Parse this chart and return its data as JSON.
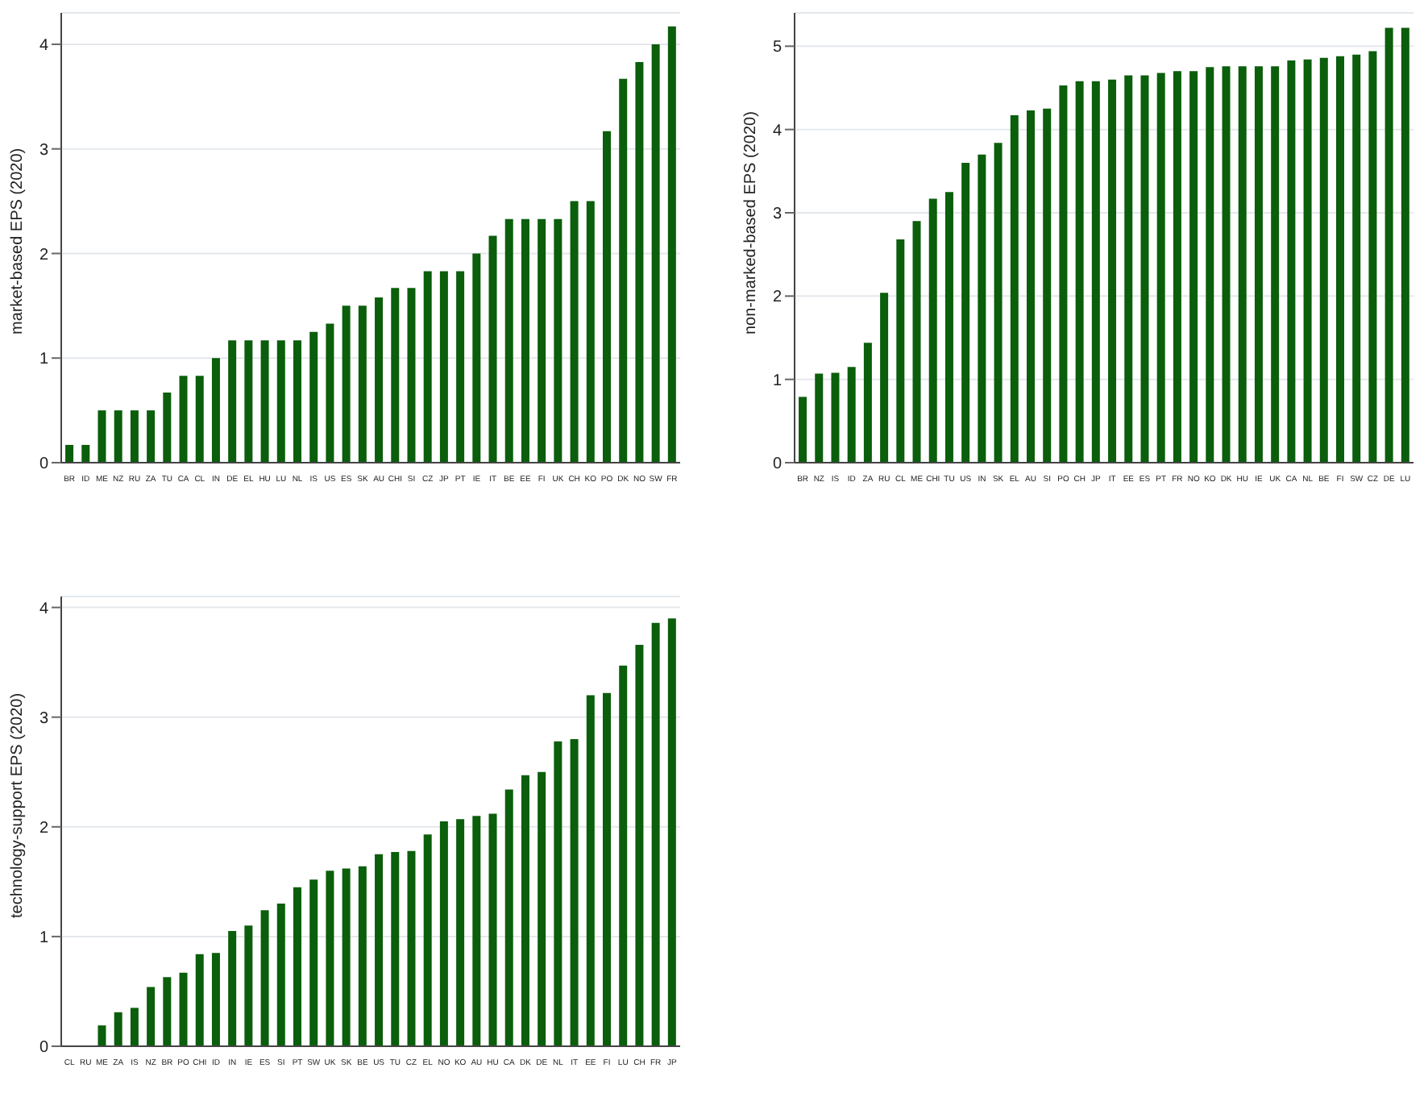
{
  "chart_data": [
    {
      "type": "bar",
      "ylabel": "market-based EPS (2020)",
      "categories": [
        "BR",
        "ID",
        "ME",
        "NZ",
        "RU",
        "ZA",
        "TU",
        "CA",
        "CL",
        "IN",
        "DE",
        "EL",
        "HU",
        "LU",
        "NL",
        "IS",
        "US",
        "ES",
        "SK",
        "AU",
        "CHI",
        "SI",
        "CZ",
        "JP",
        "PT",
        "IE",
        "IT",
        "BE",
        "EE",
        "FI",
        "UK",
        "CH",
        "KO",
        "PO",
        "DK",
        "NO",
        "SW",
        "FR"
      ],
      "values": [
        0.17,
        0.17,
        0.5,
        0.5,
        0.5,
        0.5,
        0.67,
        0.83,
        0.83,
        1.0,
        1.17,
        1.17,
        1.17,
        1.17,
        1.17,
        1.25,
        1.33,
        1.5,
        1.5,
        1.58,
        1.67,
        1.67,
        1.83,
        1.83,
        1.83,
        2.0,
        2.17,
        2.33,
        2.33,
        2.33,
        2.33,
        2.5,
        2.5,
        3.17,
        3.67,
        3.83,
        4.0,
        4.17
      ],
      "color": "#0b5e0b",
      "ylim": [
        0,
        4.3
      ],
      "yticks": [
        0,
        1,
        2,
        3,
        4
      ],
      "grid": "y",
      "legend": false
    },
    {
      "type": "bar",
      "ylabel": "non-marked-based EPS (2020)",
      "categories": [
        "BR",
        "NZ",
        "IS",
        "ID",
        "ZA",
        "RU",
        "CL",
        "ME",
        "CHI",
        "TU",
        "US",
        "IN",
        "SK",
        "EL",
        "AU",
        "SI",
        "PO",
        "CH",
        "JP",
        "IT",
        "EE",
        "ES",
        "PT",
        "FR",
        "NO",
        "KO",
        "DK",
        "HU",
        "IE",
        "UK",
        "CA",
        "NL",
        "BE",
        "FI",
        "SW",
        "CZ",
        "DE",
        "LU"
      ],
      "values": [
        0.79,
        1.07,
        1.08,
        1.15,
        1.44,
        2.04,
        2.68,
        2.9,
        3.17,
        3.25,
        3.6,
        3.7,
        3.84,
        4.17,
        4.23,
        4.25,
        4.53,
        4.58,
        4.58,
        4.6,
        4.65,
        4.65,
        4.68,
        4.7,
        4.7,
        4.75,
        4.76,
        4.76,
        4.76,
        4.76,
        4.83,
        4.84,
        4.86,
        4.88,
        4.9,
        4.94,
        5.22,
        5.22
      ],
      "color": "#0b5e0b",
      "ylim": [
        0,
        5.4
      ],
      "yticks": [
        0,
        1,
        2,
        3,
        4,
        5
      ],
      "grid": "y",
      "legend": false
    },
    {
      "type": "bar",
      "ylabel": "technology-support EPS (2020)",
      "categories": [
        "CL",
        "RU",
        "ME",
        "ZA",
        "IS",
        "NZ",
        "BR",
        "PO",
        "CHI",
        "ID",
        "IN",
        "IE",
        "ES",
        "SI",
        "PT",
        "SW",
        "UK",
        "SK",
        "BE",
        "US",
        "TU",
        "CZ",
        "EL",
        "NO",
        "KO",
        "AU",
        "HU",
        "CA",
        "DK",
        "DE",
        "NL",
        "IT",
        "EE",
        "FI",
        "LU",
        "CH",
        "FR",
        "JP"
      ],
      "values": [
        0,
        0,
        0.19,
        0.31,
        0.35,
        0.54,
        0.63,
        0.67,
        0.84,
        0.85,
        1.05,
        1.1,
        1.24,
        1.3,
        1.45,
        1.52,
        1.6,
        1.62,
        1.64,
        1.75,
        1.77,
        1.78,
        1.93,
        2.05,
        2.07,
        2.1,
        2.12,
        2.34,
        2.47,
        2.5,
        2.78,
        2.8,
        3.2,
        3.22,
        3.47,
        3.66,
        3.86,
        3.9
      ],
      "color": "#0b5e0b",
      "ylim": [
        0,
        4.1
      ],
      "yticks": [
        0,
        1,
        2,
        3,
        4
      ],
      "grid": "y",
      "legend": false
    }
  ]
}
